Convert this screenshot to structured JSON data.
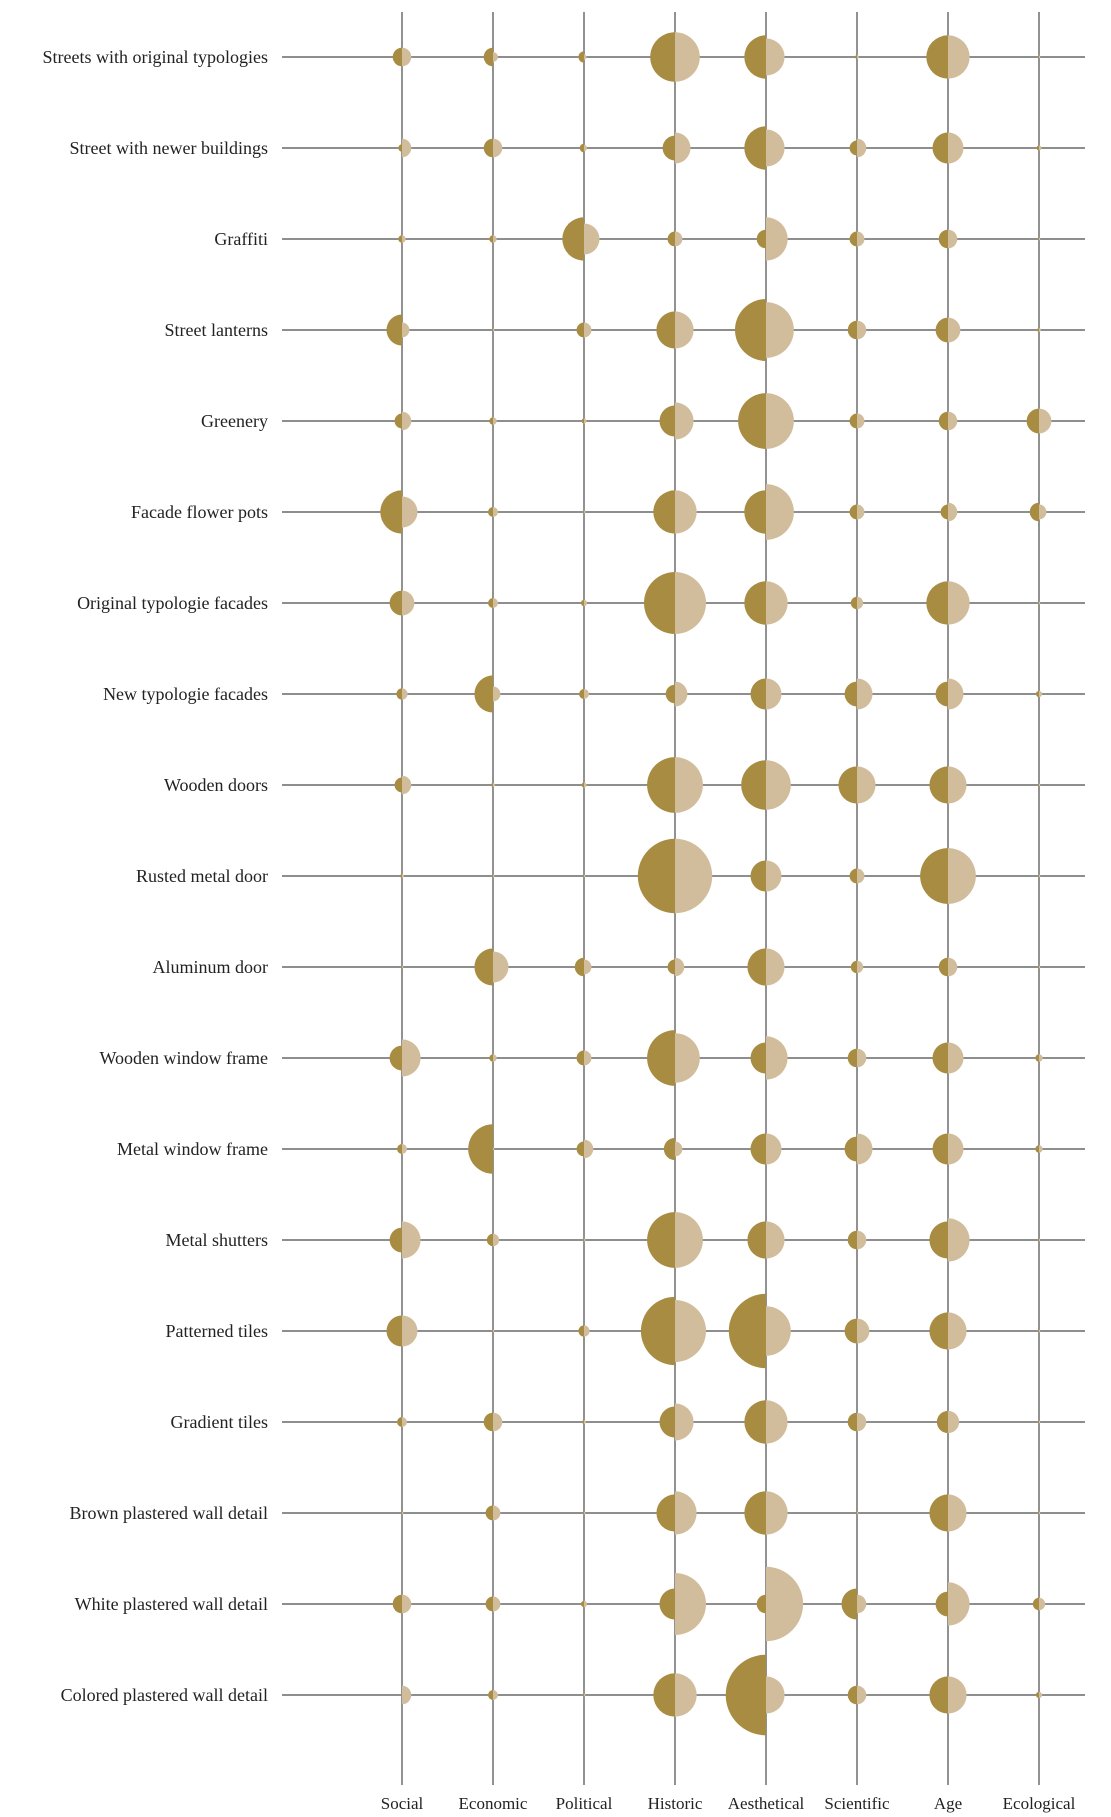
{
  "chart_data": {
    "type": "bubble-matrix",
    "title": "",
    "columns": [
      "Social",
      "Economic",
      "Political",
      "Historic",
      "Aesthetical",
      "Scientific",
      "Age",
      "Ecological"
    ],
    "series": [
      {
        "key": "left",
        "color": "#a88c42"
      },
      {
        "key": "right",
        "color": "#d1bd9b"
      }
    ],
    "rows": [
      {
        "label": "Streets with original typologies",
        "values": [
          [
            1.5,
            1.5
          ],
          [
            1.5,
            0.8
          ],
          [
            0.9,
            0.4
          ],
          [
            4,
            4
          ],
          [
            3.5,
            3
          ],
          [
            0.3,
            0.3
          ],
          [
            3.5,
            3.5
          ],
          [
            0.2,
            0.2
          ]
        ]
      },
      {
        "label": "Street with newer buildings",
        "values": [
          [
            0.6,
            1.5
          ],
          [
            1.5,
            1.5
          ],
          [
            0.7,
            0.5
          ],
          [
            2,
            2.5
          ],
          [
            3.5,
            3
          ],
          [
            1.2,
            1.5
          ],
          [
            2.5,
            2.5
          ],
          [
            0.4,
            0.4
          ]
        ]
      },
      {
        "label": "Graffiti",
        "values": [
          [
            0.6,
            0.6
          ],
          [
            0.6,
            0.6
          ],
          [
            3.5,
            2.5
          ],
          [
            1.2,
            1.2
          ],
          [
            1.5,
            3.5
          ],
          [
            1.2,
            1.2
          ],
          [
            1.5,
            1.5
          ],
          [
            0.2,
            0.2
          ]
        ]
      },
      {
        "label": "Street lanterns",
        "values": [
          [
            2.5,
            1.2
          ],
          [
            0.2,
            0.2
          ],
          [
            1.2,
            1.2
          ],
          [
            3,
            3
          ],
          [
            5,
            4.5
          ],
          [
            1.5,
            1.5
          ],
          [
            2,
            2
          ],
          [
            0.3,
            0.3
          ]
        ]
      },
      {
        "label": "Greenery",
        "values": [
          [
            1.2,
            1.5
          ],
          [
            0.6,
            0.6
          ],
          [
            0.4,
            0.4
          ],
          [
            2.5,
            3
          ],
          [
            4.5,
            4.5
          ],
          [
            1.2,
            1.2
          ],
          [
            1.5,
            1.5
          ],
          [
            2,
            2
          ]
        ]
      },
      {
        "label": "Facade flower pots",
        "values": [
          [
            3.5,
            2.5
          ],
          [
            0.8,
            0.8
          ],
          [
            0.2,
            0.2
          ],
          [
            3.5,
            3.5
          ],
          [
            3.5,
            4.5
          ],
          [
            1.2,
            1.2
          ],
          [
            1.2,
            1.5
          ],
          [
            1.5,
            1.2
          ]
        ]
      },
      {
        "label": "Original typologie facades",
        "values": [
          [
            2,
            2
          ],
          [
            0.8,
            0.8
          ],
          [
            0.5,
            0.5
          ],
          [
            5,
            5
          ],
          [
            3.5,
            3.5
          ],
          [
            1,
            1
          ],
          [
            3.5,
            3.5
          ],
          [
            0.2,
            0.2
          ]
        ]
      },
      {
        "label": "New typologie facades",
        "values": [
          [
            0.9,
            0.9
          ],
          [
            3,
            1.2
          ],
          [
            0.8,
            0.8
          ],
          [
            1.5,
            2
          ],
          [
            2.5,
            2.5
          ],
          [
            2,
            2.5
          ],
          [
            2,
            2.5
          ],
          [
            0.5,
            0.5
          ]
        ]
      },
      {
        "label": "Wooden doors",
        "values": [
          [
            1.2,
            1.5
          ],
          [
            0.3,
            0.3
          ],
          [
            0.4,
            0.4
          ],
          [
            4.5,
            4.5
          ],
          [
            4,
            4
          ],
          [
            3,
            3
          ],
          [
            3,
            3
          ],
          [
            0.2,
            0.2
          ]
        ]
      },
      {
        "label": "Rusted metal door",
        "values": [
          [
            0.3,
            0.3
          ],
          [
            0.2,
            0.2
          ],
          [
            0.2,
            0.2
          ],
          [
            6,
            6
          ],
          [
            2.5,
            2.5
          ],
          [
            1.2,
            1.2
          ],
          [
            4.5,
            4.5
          ],
          [
            0.2,
            0.2
          ]
        ]
      },
      {
        "label": "Aluminum door",
        "values": [
          [
            0.2,
            0.2
          ],
          [
            3,
            2.5
          ],
          [
            1.5,
            1.2
          ],
          [
            1.2,
            1.5
          ],
          [
            3,
            3
          ],
          [
            1,
            1
          ],
          [
            1.5,
            1.5
          ],
          [
            0.2,
            0.2
          ]
        ]
      },
      {
        "label": "Wooden window frame",
        "values": [
          [
            2,
            3
          ],
          [
            0.6,
            0.6
          ],
          [
            1.2,
            1.2
          ],
          [
            4.5,
            4
          ],
          [
            2.5,
            3.5
          ],
          [
            1.5,
            1.5
          ],
          [
            2.5,
            2.5
          ],
          [
            0.6,
            0.6
          ]
        ]
      },
      {
        "label": "Metal window frame",
        "values": [
          [
            0.8,
            0.8
          ],
          [
            4,
            0.2
          ],
          [
            1.2,
            1.5
          ],
          [
            1.8,
            1.2
          ],
          [
            2.5,
            2.5
          ],
          [
            2,
            2.5
          ],
          [
            2.5,
            2.5
          ],
          [
            0.6,
            0.6
          ]
        ]
      },
      {
        "label": "Metal shutters",
        "values": [
          [
            2,
            3
          ],
          [
            1,
            1
          ],
          [
            0.2,
            0.2
          ],
          [
            4.5,
            4.5
          ],
          [
            3,
            3
          ],
          [
            1.5,
            1.5
          ],
          [
            3,
            3.5
          ],
          [
            0.2,
            0.2
          ]
        ]
      },
      {
        "label": "Patterned tiles",
        "values": [
          [
            2.5,
            2.5
          ],
          [
            0.2,
            0.2
          ],
          [
            0.9,
            0.9
          ],
          [
            5.5,
            5
          ],
          [
            6,
            4
          ],
          [
            2,
            2
          ],
          [
            3,
            3
          ],
          [
            0.2,
            0.2
          ]
        ]
      },
      {
        "label": "Gradient tiles",
        "values": [
          [
            0.8,
            0.8
          ],
          [
            1.5,
            1.5
          ],
          [
            0.3,
            0.3
          ],
          [
            2.5,
            3
          ],
          [
            3.5,
            3.5
          ],
          [
            1.5,
            1.5
          ],
          [
            1.8,
            1.8
          ],
          [
            0.2,
            0.2
          ]
        ]
      },
      {
        "label": "Brown plastered wall detail",
        "values": [
          [
            0.2,
            0.2
          ],
          [
            1.2,
            1.2
          ],
          [
            0.2,
            0.2
          ],
          [
            3,
            3.5
          ],
          [
            3.5,
            3.5
          ],
          [
            0.2,
            0.2
          ],
          [
            3,
            3
          ],
          [
            0.2,
            0.2
          ]
        ]
      },
      {
        "label": "White plastered wall detail",
        "values": [
          [
            1.5,
            1.5
          ],
          [
            1.2,
            1.2
          ],
          [
            0.5,
            0.5
          ],
          [
            2.5,
            5
          ],
          [
            1.5,
            6
          ],
          [
            2.5,
            1.5
          ],
          [
            2,
            3.5
          ],
          [
            1,
            1
          ]
        ]
      },
      {
        "label": "Colored plastered wall detail",
        "values": [
          [
            0.2,
            1.5
          ],
          [
            0.8,
            0.8
          ],
          [
            0.2,
            0.2
          ],
          [
            3.5,
            3.5
          ],
          [
            6.5,
            3
          ],
          [
            1.5,
            1.5
          ],
          [
            3,
            3
          ],
          [
            0.5,
            0.5
          ]
        ]
      }
    ]
  }
}
